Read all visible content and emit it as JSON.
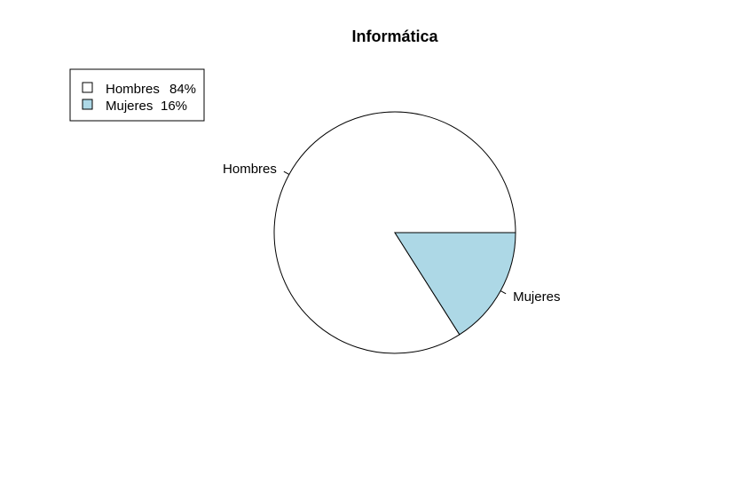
{
  "chart_data": {
    "type": "pie",
    "title": "Informática",
    "categories": [
      "Hombres",
      "Mujeres"
    ],
    "values": [
      84,
      16
    ],
    "unit": "%",
    "colors": [
      "#ffffff",
      "#add8e6"
    ],
    "legend": {
      "position": "top-left",
      "entries": [
        {
          "label": "Hombres",
          "percent": "84%"
        },
        {
          "label": "Mujeres",
          "percent": "16%"
        }
      ]
    }
  }
}
